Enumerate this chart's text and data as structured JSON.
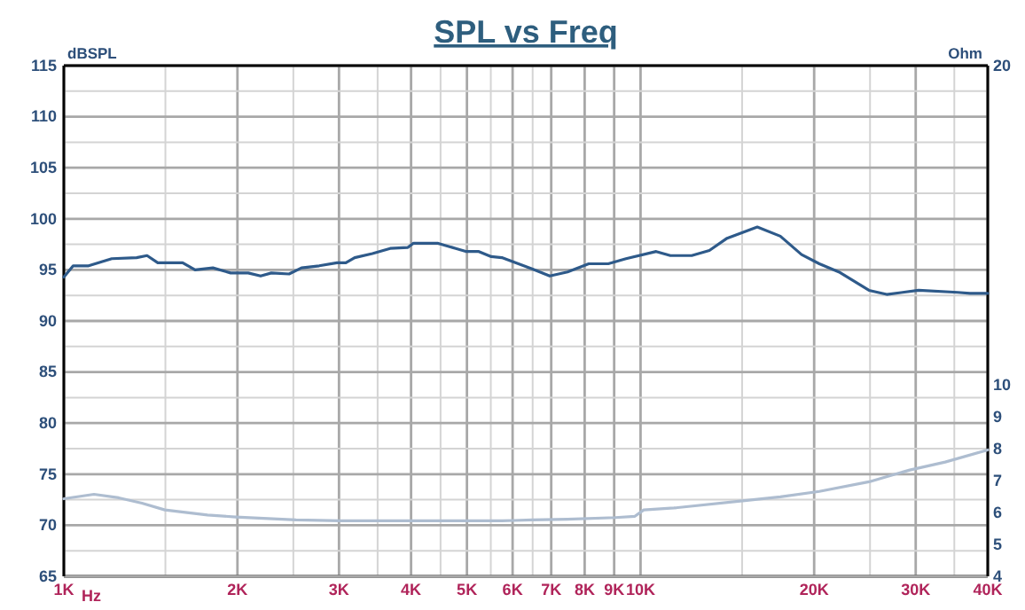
{
  "chart_data": {
    "type": "line",
    "title": "SPL vs Freq",
    "xlabel": "Hz",
    "ylabel": "dBSPL",
    "y2label": "Ohm",
    "log": "x",
    "grid": true,
    "xlim": [
      1000,
      40000
    ],
    "ylim": [
      65,
      115
    ],
    "y2lim": [
      4,
      20
    ],
    "xticks": [
      {
        "value": 1000,
        "label": "1K"
      },
      {
        "value": 1500,
        "label": null
      },
      {
        "value": 2000,
        "label": "2K"
      },
      {
        "value": 2500,
        "label": null
      },
      {
        "value": 3000,
        "label": "3K"
      },
      {
        "value": 3500,
        "label": null
      },
      {
        "value": 4000,
        "label": "4K"
      },
      {
        "value": 4500,
        "label": null
      },
      {
        "value": 5000,
        "label": "5K"
      },
      {
        "value": 5500,
        "label": null
      },
      {
        "value": 6000,
        "label": "6K"
      },
      {
        "value": 6500,
        "label": null
      },
      {
        "value": 7000,
        "label": "7K"
      },
      {
        "value": 8000,
        "label": "8K"
      },
      {
        "value": 9000,
        "label": "9K"
      },
      {
        "value": 10000,
        "label": "10K"
      },
      {
        "value": 15000,
        "label": null
      },
      {
        "value": 20000,
        "label": "20K"
      },
      {
        "value": 25000,
        "label": null
      },
      {
        "value": 30000,
        "label": "30K"
      },
      {
        "value": 35000,
        "label": null
      },
      {
        "value": 40000,
        "label": "40K"
      }
    ],
    "yticks": [
      65,
      {
        "value": 67.5,
        "label": null
      },
      70,
      {
        "value": 72.5,
        "label": null
      },
      75,
      {
        "value": 77.5,
        "label": null
      },
      80,
      {
        "value": 82.5,
        "label": null
      },
      85,
      {
        "value": 87.5,
        "label": null
      },
      90,
      {
        "value": 92.5,
        "label": null
      },
      95,
      {
        "value": 97.5,
        "label": null
      },
      100,
      {
        "value": 102.5,
        "label": null
      },
      105,
      {
        "value": 107.5,
        "label": null
      },
      110,
      {
        "value": 112.5,
        "label": null
      },
      115
    ],
    "y2ticks": [
      4,
      5,
      6,
      7,
      8,
      9,
      10,
      20
    ],
    "series": [
      {
        "color": "#2e5a8a",
        "x": [
          1000,
          1038,
          1104,
          1211,
          1337,
          1394,
          1455,
          1607,
          1689,
          1813,
          1946,
          2088,
          2194,
          2290,
          2458,
          2583,
          2772,
          2976,
          3083,
          3194,
          3428,
          3680,
          3950,
          4035,
          4457,
          4782,
          4989,
          5243,
          5510,
          5748,
          6484,
          6959,
          7470,
          8132,
          8790,
          9437,
          10644,
          11265,
          12266,
          13163,
          14129,
          15938,
          17473,
          19019,
          20417,
          22073,
          24894,
          26720,
          30353,
          35463,
          37261,
          40000
        ],
        "values": [
          94.3,
          95.4,
          95.4,
          96.1,
          96.2,
          96.4,
          95.7,
          95.7,
          95.0,
          95.2,
          94.7,
          94.7,
          94.4,
          94.7,
          94.6,
          95.2,
          95.4,
          95.7,
          95.7,
          96.2,
          96.6,
          97.1,
          97.2,
          97.6,
          97.6,
          97.1,
          96.8,
          96.8,
          96.3,
          96.2,
          95.1,
          94.4,
          94.8,
          95.6,
          95.6,
          96.1,
          96.8,
          96.4,
          96.4,
          96.9,
          98.1,
          99.2,
          98.3,
          96.5,
          95.6,
          94.8,
          93.0,
          92.6,
          93.0,
          92.8,
          92.7,
          92.7
        ]
      },
      {
        "color": "#aebdd0",
        "axis": "y2",
        "x": [
          1000,
          1128,
          1245,
          1366,
          1497,
          1775,
          1987,
          2528,
          3018,
          5748,
          6039,
          6484,
          7470,
          9044,
          9777,
          10128,
          11425,
          15160,
          17473,
          20417,
          24894,
          29300,
          33750,
          40000
        ],
        "values": [
          6.43,
          6.57,
          6.46,
          6.29,
          6.08,
          5.92,
          5.86,
          5.77,
          5.74,
          5.74,
          5.75,
          5.77,
          5.79,
          5.84,
          5.88,
          6.08,
          6.14,
          6.37,
          6.49,
          6.66,
          6.96,
          7.33,
          7.58,
          7.96
        ]
      }
    ]
  }
}
